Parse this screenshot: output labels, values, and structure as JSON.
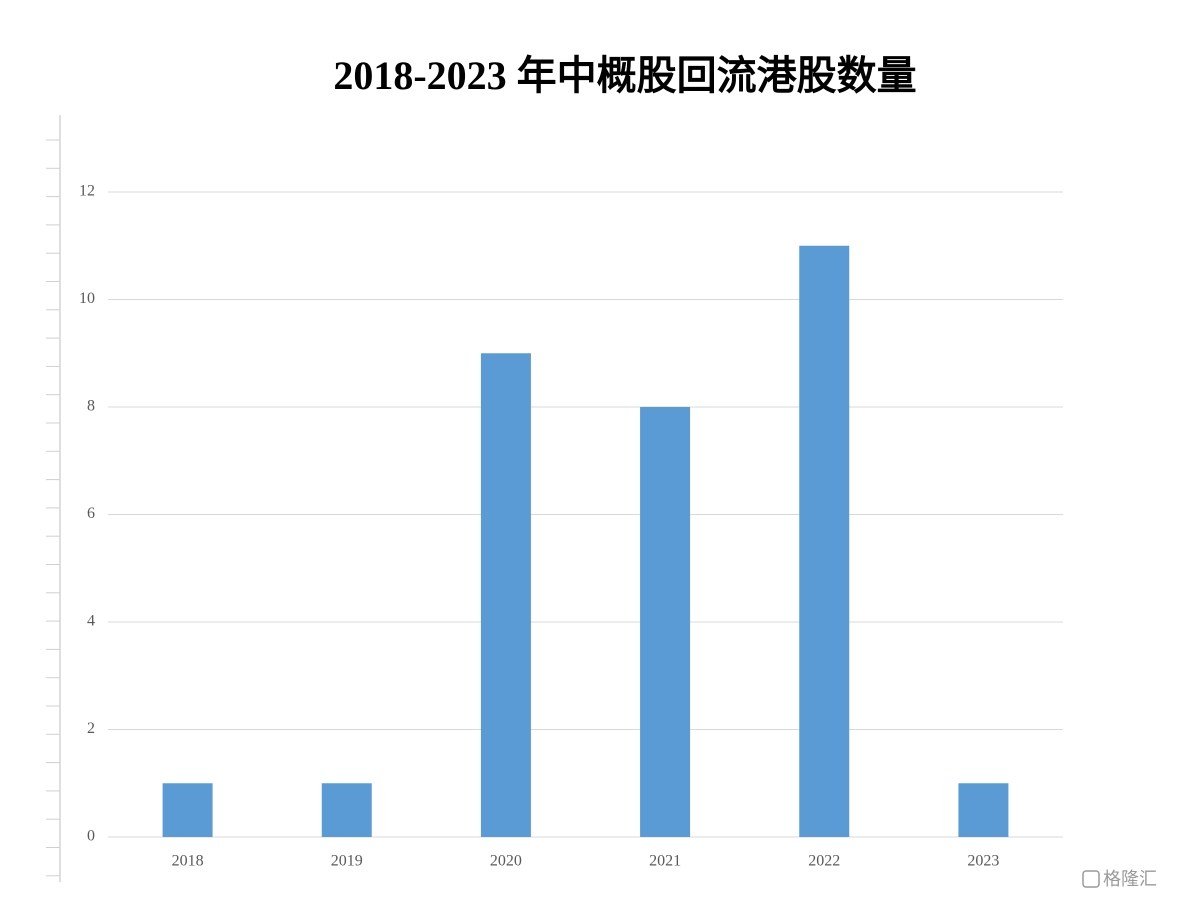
{
  "chart_data": {
    "type": "bar",
    "title": "2018-2023 年中概股回流港股数量",
    "categories": [
      "2018",
      "2019",
      "2020",
      "2021",
      "2022",
      "2023"
    ],
    "values": [
      1,
      1,
      9,
      8,
      11,
      1
    ],
    "color": "#5b9bd5",
    "ylim": [
      0,
      12
    ],
    "yticks": [
      0,
      2,
      4,
      6,
      8,
      10,
      12
    ],
    "grid": true,
    "watermark": "格隆汇"
  }
}
